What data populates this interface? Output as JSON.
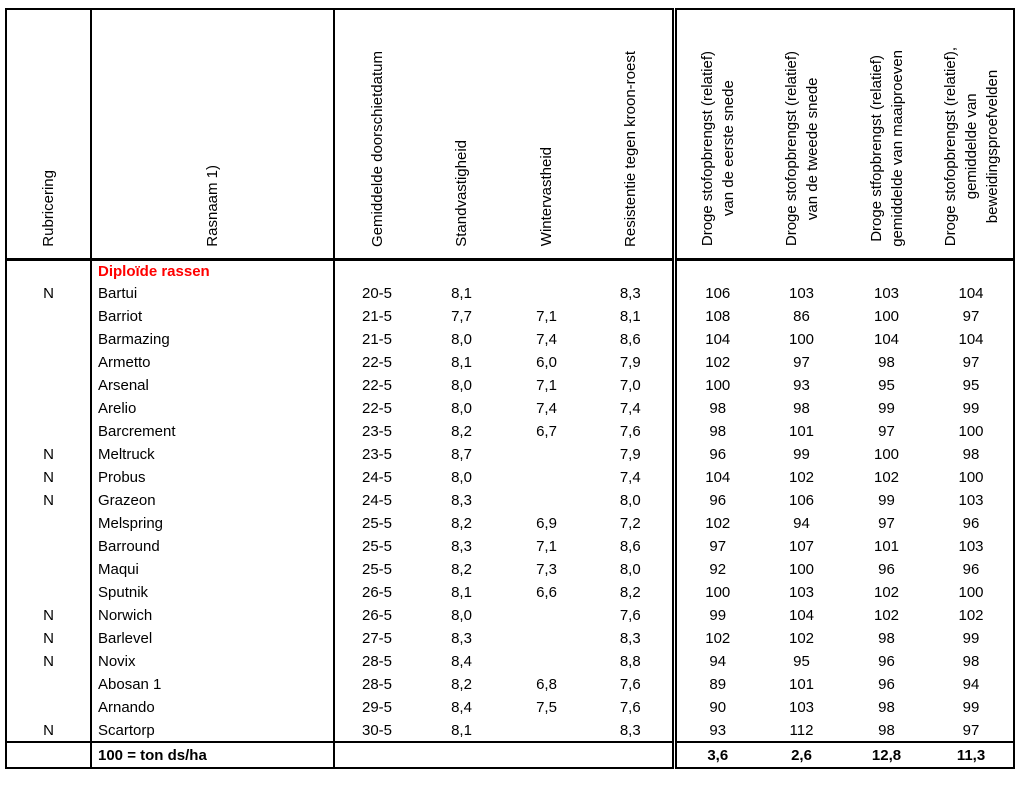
{
  "table": {
    "columns": [
      {
        "key": "rubricering",
        "label_lines": [
          "Rubricering"
        ]
      },
      {
        "key": "rasnaam",
        "label_lines": [
          "Rasnaam 1)"
        ]
      },
      {
        "key": "doorschietdatum",
        "label_lines": [
          "Gemiddelde doorschietdatum"
        ]
      },
      {
        "key": "standvastigheid",
        "label_lines": [
          "Standvastigheid"
        ]
      },
      {
        "key": "wintervastheid",
        "label_lines": [
          "Wintervastheid"
        ]
      },
      {
        "key": "kroonroest",
        "label_lines": [
          "Resistentie tegen kroon-roest"
        ]
      },
      {
        "key": "ds-eerste-snede",
        "label_lines": [
          "Droge stofopbrengst (relatief)",
          "van de eerste snede"
        ]
      },
      {
        "key": "ds-tweede-snede",
        "label_lines": [
          "Droge stofopbrengst (relatief)",
          "van de tweede snede"
        ]
      },
      {
        "key": "ds-maaiproeven",
        "label_lines": [
          "Droge stfopbrengst (relatief)",
          "gemiddelde van maaiproeven"
        ]
      },
      {
        "key": "ds-beweiding",
        "label_lines": [
          "Droge stofopbrengst (relatief),",
          "gemiddelde van",
          "beweidingsproefvelden"
        ]
      }
    ],
    "group_header": {
      "label": "Diploïde rassen",
      "color": "#FF0000"
    },
    "rows": [
      {
        "rubricering": "N",
        "rasnaam": "Bartui",
        "values": [
          "20-5",
          "8,1",
          "",
          "8,3",
          "106",
          "103",
          "103",
          "104"
        ]
      },
      {
        "rubricering": "",
        "rasnaam": "Barriot",
        "values": [
          "21-5",
          "7,7",
          "7,1",
          "8,1",
          "108",
          "86",
          "100",
          "97"
        ]
      },
      {
        "rubricering": "",
        "rasnaam": "Barmazing",
        "values": [
          "21-5",
          "8,0",
          "7,4",
          "8,6",
          "104",
          "100",
          "104",
          "104"
        ]
      },
      {
        "rubricering": "",
        "rasnaam": "Armetto",
        "values": [
          "22-5",
          "8,1",
          "6,0",
          "7,9",
          "102",
          "97",
          "98",
          "97"
        ]
      },
      {
        "rubricering": "",
        "rasnaam": "Arsenal",
        "values": [
          "22-5",
          "8,0",
          "7,1",
          "7,0",
          "100",
          "93",
          "95",
          "95"
        ]
      },
      {
        "rubricering": "",
        "rasnaam": "Arelio",
        "values": [
          "22-5",
          "8,0",
          "7,4",
          "7,4",
          "98",
          "98",
          "99",
          "99"
        ]
      },
      {
        "rubricering": "",
        "rasnaam": "Barcrement",
        "values": [
          "23-5",
          "8,2",
          "6,7",
          "7,6",
          "98",
          "101",
          "97",
          "100"
        ]
      },
      {
        "rubricering": "N",
        "rasnaam": "Meltruck",
        "values": [
          "23-5",
          "8,7",
          "",
          "7,9",
          "96",
          "99",
          "100",
          "98"
        ]
      },
      {
        "rubricering": "N",
        "rasnaam": "Probus",
        "values": [
          "24-5",
          "8,0",
          "",
          "7,4",
          "104",
          "102",
          "102",
          "100"
        ]
      },
      {
        "rubricering": "N",
        "rasnaam": "Grazeon",
        "values": [
          "24-5",
          "8,3",
          "",
          "8,0",
          "96",
          "106",
          "99",
          "103"
        ]
      },
      {
        "rubricering": "",
        "rasnaam": "Melspring",
        "values": [
          "25-5",
          "8,2",
          "6,9",
          "7,2",
          "102",
          "94",
          "97",
          "96"
        ]
      },
      {
        "rubricering": "",
        "rasnaam": "Barround",
        "values": [
          "25-5",
          "8,3",
          "7,1",
          "8,6",
          "97",
          "107",
          "101",
          "103"
        ]
      },
      {
        "rubricering": "",
        "rasnaam": "Maqui",
        "values": [
          "25-5",
          "8,2",
          "7,3",
          "8,0",
          "92",
          "100",
          "96",
          "96"
        ]
      },
      {
        "rubricering": "",
        "rasnaam": "Sputnik",
        "values": [
          "26-5",
          "8,1",
          "6,6",
          "8,2",
          "100",
          "103",
          "102",
          "100"
        ]
      },
      {
        "rubricering": "N",
        "rasnaam": "Norwich",
        "values": [
          "26-5",
          "8,0",
          "",
          "7,6",
          "99",
          "104",
          "102",
          "102"
        ]
      },
      {
        "rubricering": "N",
        "rasnaam": "Barlevel",
        "values": [
          "27-5",
          "8,3",
          "",
          "8,3",
          "102",
          "102",
          "98",
          "99"
        ]
      },
      {
        "rubricering": "N",
        "rasnaam": "Novix",
        "values": [
          "28-5",
          "8,4",
          "",
          "8,8",
          "94",
          "95",
          "96",
          "98"
        ]
      },
      {
        "rubricering": "",
        "rasnaam": "Abosan 1",
        "values": [
          "28-5",
          "8,2",
          "6,8",
          "7,6",
          "89",
          "101",
          "96",
          "94"
        ]
      },
      {
        "rubricering": "",
        "rasnaam": "Arnando",
        "values": [
          "29-5",
          "8,4",
          "7,5",
          "7,6",
          "90",
          "103",
          "98",
          "99"
        ]
      },
      {
        "rubricering": "N",
        "rasnaam": "Scartorp",
        "values": [
          "30-5",
          "8,1",
          "",
          "8,3",
          "93",
          "112",
          "98",
          "97"
        ]
      }
    ],
    "footer": {
      "label": "100 = ton ds/ha",
      "values": [
        "",
        "",
        "",
        "",
        "3,6",
        "2,6",
        "12,8",
        "11,3"
      ]
    }
  }
}
